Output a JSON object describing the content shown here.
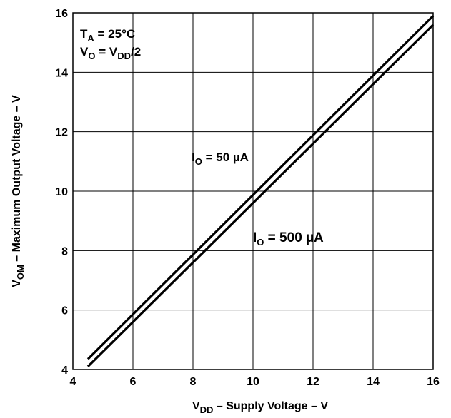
{
  "chart_data": {
    "type": "line",
    "xlabel": {
      "main": "V",
      "sub": "DD",
      "rest": " – Supply Voltage  – V"
    },
    "ylabel": {
      "main": "V",
      "sub": "OM",
      "rest": " – Maximum Output Voltage – V"
    },
    "xlim": [
      4,
      16
    ],
    "ylim": [
      4,
      16
    ],
    "x_ticks": [
      4,
      6,
      8,
      10,
      12,
      14,
      16
    ],
    "y_ticks": [
      4,
      6,
      8,
      10,
      12,
      14,
      16
    ],
    "grid": true,
    "conditions": [
      {
        "main": "T",
        "sub": "A",
        "rest": " = 25°C"
      },
      {
        "main": "V",
        "sub": "O",
        "rest": " = V",
        "sub2": "DD",
        "rest2": "/2"
      }
    ],
    "series": [
      {
        "name": {
          "main": "I",
          "sub": "O",
          "rest": " = 50 µA"
        },
        "x": [
          4.5,
          16
        ],
        "y": [
          4.35,
          15.9
        ]
      },
      {
        "name": {
          "main": "I",
          "sub": "O",
          "rest": " = 500 µA"
        },
        "x": [
          4.5,
          16
        ],
        "y": [
          4.1,
          15.6
        ]
      }
    ]
  }
}
